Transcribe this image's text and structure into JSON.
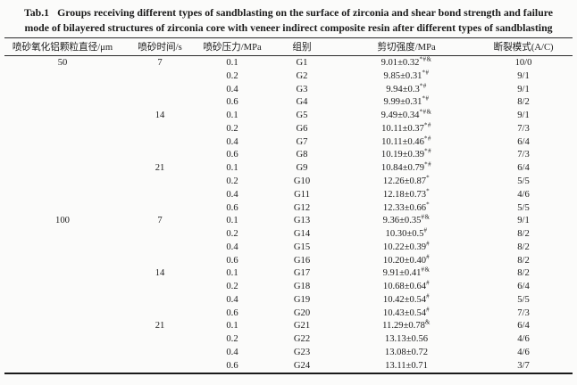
{
  "caption": {
    "label": "Tab.1",
    "line1": "Groups receiving different types of sandblasting on the surface of zirconia and shear bond strength and failure",
    "line2": "mode of bilayered structures of zirconia core with veneer indirect composite resin after different types of sandblasting"
  },
  "table": {
    "headers": [
      "喷砂氧化铝颗粒直径/μm",
      "喷砂时间/s",
      "喷砂压力/MPa",
      "组别",
      "剪切强度/MPa",
      "断裂模式(A/C)"
    ],
    "rows": [
      {
        "diameter": "50",
        "time": "7",
        "pressure": "0.1",
        "group": "G1",
        "strength": "9.01±0.32",
        "sup": "*#&",
        "mode": "10/0"
      },
      {
        "diameter": "",
        "time": "",
        "pressure": "0.2",
        "group": "G2",
        "strength": "9.85±0.31",
        "sup": "*#",
        "mode": "9/1"
      },
      {
        "diameter": "",
        "time": "",
        "pressure": "0.4",
        "group": "G3",
        "strength": "9.94±0.3",
        "sup": "*#",
        "mode": "9/1"
      },
      {
        "diameter": "",
        "time": "",
        "pressure": "0.6",
        "group": "G4",
        "strength": "9.99±0.31",
        "sup": "*#",
        "mode": "8/2"
      },
      {
        "diameter": "",
        "time": "14",
        "pressure": "0.1",
        "group": "G5",
        "strength": "9.49±0.34",
        "sup": "*#&",
        "mode": "9/1"
      },
      {
        "diameter": "",
        "time": "",
        "pressure": "0.2",
        "group": "G6",
        "strength": "10.11±0.37",
        "sup": "*#",
        "mode": "7/3"
      },
      {
        "diameter": "",
        "time": "",
        "pressure": "0.4",
        "group": "G7",
        "strength": "10.11±0.46",
        "sup": "*#",
        "mode": "6/4"
      },
      {
        "diameter": "",
        "time": "",
        "pressure": "0.6",
        "group": "G8",
        "strength": "10.19±0.39",
        "sup": "*#",
        "mode": "7/3"
      },
      {
        "diameter": "",
        "time": "21",
        "pressure": "0.1",
        "group": "G9",
        "strength": "10.84±0.79",
        "sup": "*#",
        "mode": "6/4"
      },
      {
        "diameter": "",
        "time": "",
        "pressure": "0.2",
        "group": "G10",
        "strength": "12.26±0.87",
        "sup": "*",
        "mode": "5/5"
      },
      {
        "diameter": "",
        "time": "",
        "pressure": "0.4",
        "group": "G11",
        "strength": "12.18±0.73",
        "sup": "*",
        "mode": "4/6"
      },
      {
        "diameter": "",
        "time": "",
        "pressure": "0.6",
        "group": "G12",
        "strength": "12.33±0.66",
        "sup": "*",
        "mode": "5/5"
      },
      {
        "diameter": "100",
        "time": "7",
        "pressure": "0.1",
        "group": "G13",
        "strength": "9.36±0.35",
        "sup": "#&",
        "mode": "9/1"
      },
      {
        "diameter": "",
        "time": "",
        "pressure": "0.2",
        "group": "G14",
        "strength": "10.30±0.5",
        "sup": "#",
        "mode": "8/2"
      },
      {
        "diameter": "",
        "time": "",
        "pressure": "0.4",
        "group": "G15",
        "strength": "10.22±0.39",
        "sup": "#",
        "mode": "8/2"
      },
      {
        "diameter": "",
        "time": "",
        "pressure": "0.6",
        "group": "G16",
        "strength": "10.20±0.40",
        "sup": "#",
        "mode": "8/2"
      },
      {
        "diameter": "",
        "time": "14",
        "pressure": "0.1",
        "group": "G17",
        "strength": "9.91±0.41",
        "sup": "#&",
        "mode": "8/2"
      },
      {
        "diameter": "",
        "time": "",
        "pressure": "0.2",
        "group": "G18",
        "strength": "10.68±0.64",
        "sup": "#",
        "mode": "6/4"
      },
      {
        "diameter": "",
        "time": "",
        "pressure": "0.4",
        "group": "G19",
        "strength": "10.42±0.54",
        "sup": "#",
        "mode": "5/5"
      },
      {
        "diameter": "",
        "time": "",
        "pressure": "0.6",
        "group": "G20",
        "strength": "10.43±0.54",
        "sup": "#",
        "mode": "7/3"
      },
      {
        "diameter": "",
        "time": "21",
        "pressure": "0.1",
        "group": "G21",
        "strength": "11.29±0.78",
        "sup": "&",
        "mode": "6/4"
      },
      {
        "diameter": "",
        "time": "",
        "pressure": "0.2",
        "group": "G22",
        "strength": "13.13±0.56",
        "sup": "",
        "mode": "4/6"
      },
      {
        "diameter": "",
        "time": "",
        "pressure": "0.4",
        "group": "G23",
        "strength": "13.08±0.72",
        "sup": "",
        "mode": "4/6"
      },
      {
        "diameter": "",
        "time": "",
        "pressure": "0.6",
        "group": "G24",
        "strength": "13.11±0.71",
        "sup": "",
        "mode": "3/7"
      }
    ]
  }
}
